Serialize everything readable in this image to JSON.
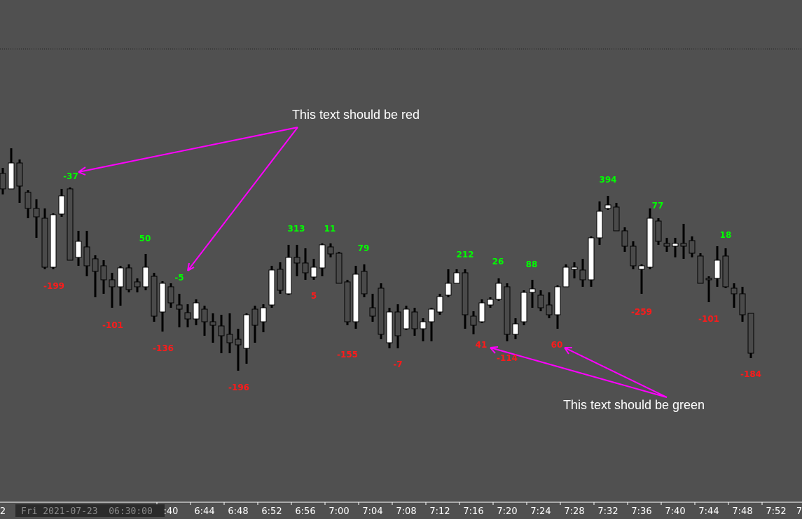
{
  "labels": [
    {
      "text": "-37",
      "color": "#00ff00"
    },
    {
      "text": "50",
      "color": "#00ff00"
    },
    {
      "text": "-5",
      "color": "#00ff00"
    },
    {
      "text": "313",
      "color": "#00ff00"
    },
    {
      "text": "11",
      "color": "#00ff00"
    },
    {
      "text": "79",
      "color": "#00ff00"
    },
    {
      "text": "212",
      "color": "#00ff00"
    },
    {
      "text": "26",
      "color": "#00ff00"
    },
    {
      "text": "88",
      "color": "#00ff00"
    },
    {
      "text": "394",
      "color": "#00ff00"
    },
    {
      "text": "77",
      "color": "#00ff00"
    },
    {
      "text": "18",
      "color": "#00ff00"
    },
    {
      "text": "-199",
      "color": "#ff1a1a"
    },
    {
      "text": "-101",
      "color": "#ff1a1a"
    },
    {
      "text": "-136",
      "color": "#ff1a1a"
    },
    {
      "text": "-196",
      "color": "#ff1a1a"
    },
    {
      "text": "5",
      "color": "#ff1a1a"
    },
    {
      "text": "-155",
      "color": "#ff1a1a"
    },
    {
      "text": "-7",
      "color": "#ff1a1a"
    },
    {
      "text": "41",
      "color": "#ff1a1a"
    },
    {
      "text": "-114",
      "color": "#ff1a1a"
    },
    {
      "text": "60",
      "color": "#ff1a1a"
    },
    {
      "text": "-259",
      "color": "#ff1a1a"
    },
    {
      "text": "-101",
      "color": "#ff1a1a"
    },
    {
      "text": "-184",
      "color": "#ff1a1a"
    }
  ],
  "annotations": [
    "This text should be red",
    "This text should be green"
  ],
  "date_label": "Fri 2021-07-23  06:30:00",
  "times": [
    "2",
    ":40",
    "6:44",
    "6:48",
    "6:52",
    "6:56",
    "7:00",
    "7:04",
    "7:08",
    "7:12",
    "7:16",
    "7:20",
    "7:24",
    "7:28",
    "7:32",
    "7:36",
    "7:40",
    "7:44",
    "7:48",
    "7:52",
    "7"
  ]
}
